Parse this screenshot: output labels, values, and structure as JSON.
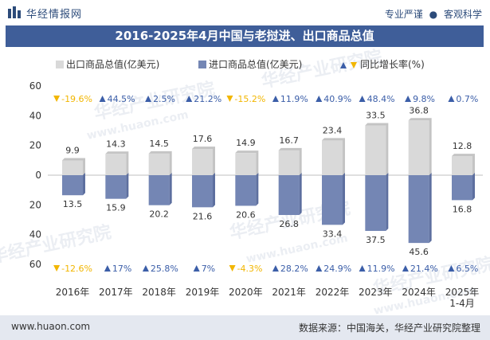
{
  "header": {
    "site_name": "华经情报网",
    "tag1": "专业严谨",
    "separator": "●",
    "tag2": "客观科学"
  },
  "title": "2016-2025年4月中国与老挝进、出口商品总值",
  "watermark_text": "华经产业研究院",
  "watermark_url": "www.huaon.com",
  "footer": {
    "url": "www.huaon.com",
    "source": "数据来源：中国海关，华经产业研究院整理"
  },
  "colors": {
    "export": "#d9d9d9",
    "import": "#7486b4",
    "up": "#3b5ea8",
    "down": "#f2b600",
    "title_bg": "#3f5e99"
  },
  "chart_data": {
    "type": "bar",
    "categories": [
      "2016年",
      "2017年",
      "2018年",
      "2019年",
      "2020年",
      "2021年",
      "2022年",
      "2023年",
      "2024年",
      "2025年\n1-4月"
    ],
    "series": [
      {
        "name": "出口商品总值(亿美元)",
        "values": [
          9.9,
          14.3,
          14.5,
          17.6,
          14.9,
          16.7,
          23.4,
          33.5,
          36.8,
          12.8
        ],
        "direction": "up"
      },
      {
        "name": "进口商品总值(亿美元)",
        "values": [
          13.5,
          15.9,
          20.2,
          21.6,
          20.6,
          26.8,
          33.4,
          37.5,
          45.6,
          16.8
        ],
        "direction": "down"
      }
    ],
    "growth_label": "同比增长率(%)",
    "export_growth": [
      -19.6,
      44.5,
      2.5,
      21.2,
      -15.2,
      11.9,
      40.9,
      48.4,
      9.8,
      0.7
    ],
    "export_growth_labels": [
      "-19.6%",
      "44.5%",
      "2.5%",
      "21.2%",
      "-15.2%",
      "11.9%",
      "40.9%",
      "48.4%",
      "9.8%",
      "0.7%"
    ],
    "import_growth": [
      -12.6,
      17,
      25.8,
      7,
      -4.3,
      28.2,
      24.9,
      11.9,
      21.4,
      6.5
    ],
    "import_growth_labels": [
      "-12.6%",
      "17%",
      "25.8%",
      "7%",
      "-4.3%",
      "28.2%",
      "24.9%",
      "11.9%",
      "21.4%",
      "6.5%"
    ],
    "y_ticks": [
      "60",
      "40",
      "20",
      "0",
      "20",
      "40",
      "60"
    ],
    "ylim": [
      -60,
      60
    ],
    "legend_position": "top"
  }
}
